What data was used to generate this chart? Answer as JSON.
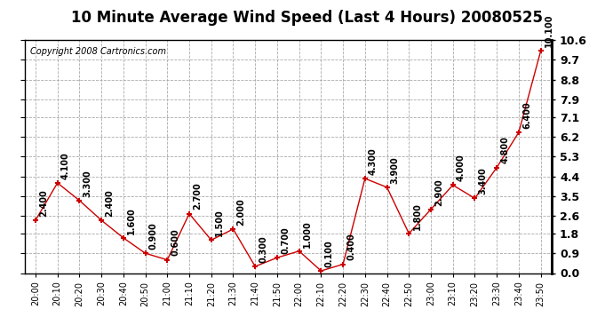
{
  "title": "10 Minute Average Wind Speed (Last 4 Hours) 20080525",
  "copyright": "Copyright 2008 Cartronics.com",
  "x_labels": [
    "20:00",
    "20:10",
    "20:20",
    "20:30",
    "20:40",
    "20:50",
    "21:00",
    "21:10",
    "21:20",
    "21:30",
    "21:40",
    "21:50",
    "22:00",
    "22:10",
    "22:20",
    "22:30",
    "22:40",
    "22:50",
    "23:00",
    "23:10",
    "23:20",
    "23:30",
    "23:40",
    "23:50"
  ],
  "y_values": [
    2.4,
    4.1,
    3.3,
    2.4,
    1.6,
    0.9,
    0.6,
    2.7,
    1.5,
    2.0,
    0.3,
    0.7,
    1.0,
    0.1,
    0.4,
    4.3,
    3.9,
    1.8,
    2.9,
    4.0,
    3.4,
    4.8,
    6.4,
    10.1
  ],
  "y_ticks": [
    0.0,
    0.9,
    1.8,
    2.6,
    3.5,
    4.4,
    5.3,
    6.2,
    7.1,
    7.9,
    8.8,
    9.7,
    10.6
  ],
  "ylim": [
    0.0,
    10.6
  ],
  "line_color": "#cc0000",
  "marker_color": "#cc0000",
  "bg_color": "#ffffff",
  "grid_color": "#aaaaaa",
  "title_fontsize": 12,
  "copyright_fontsize": 7,
  "tick_label_fontsize": 9,
  "annot_fontsize": 7
}
